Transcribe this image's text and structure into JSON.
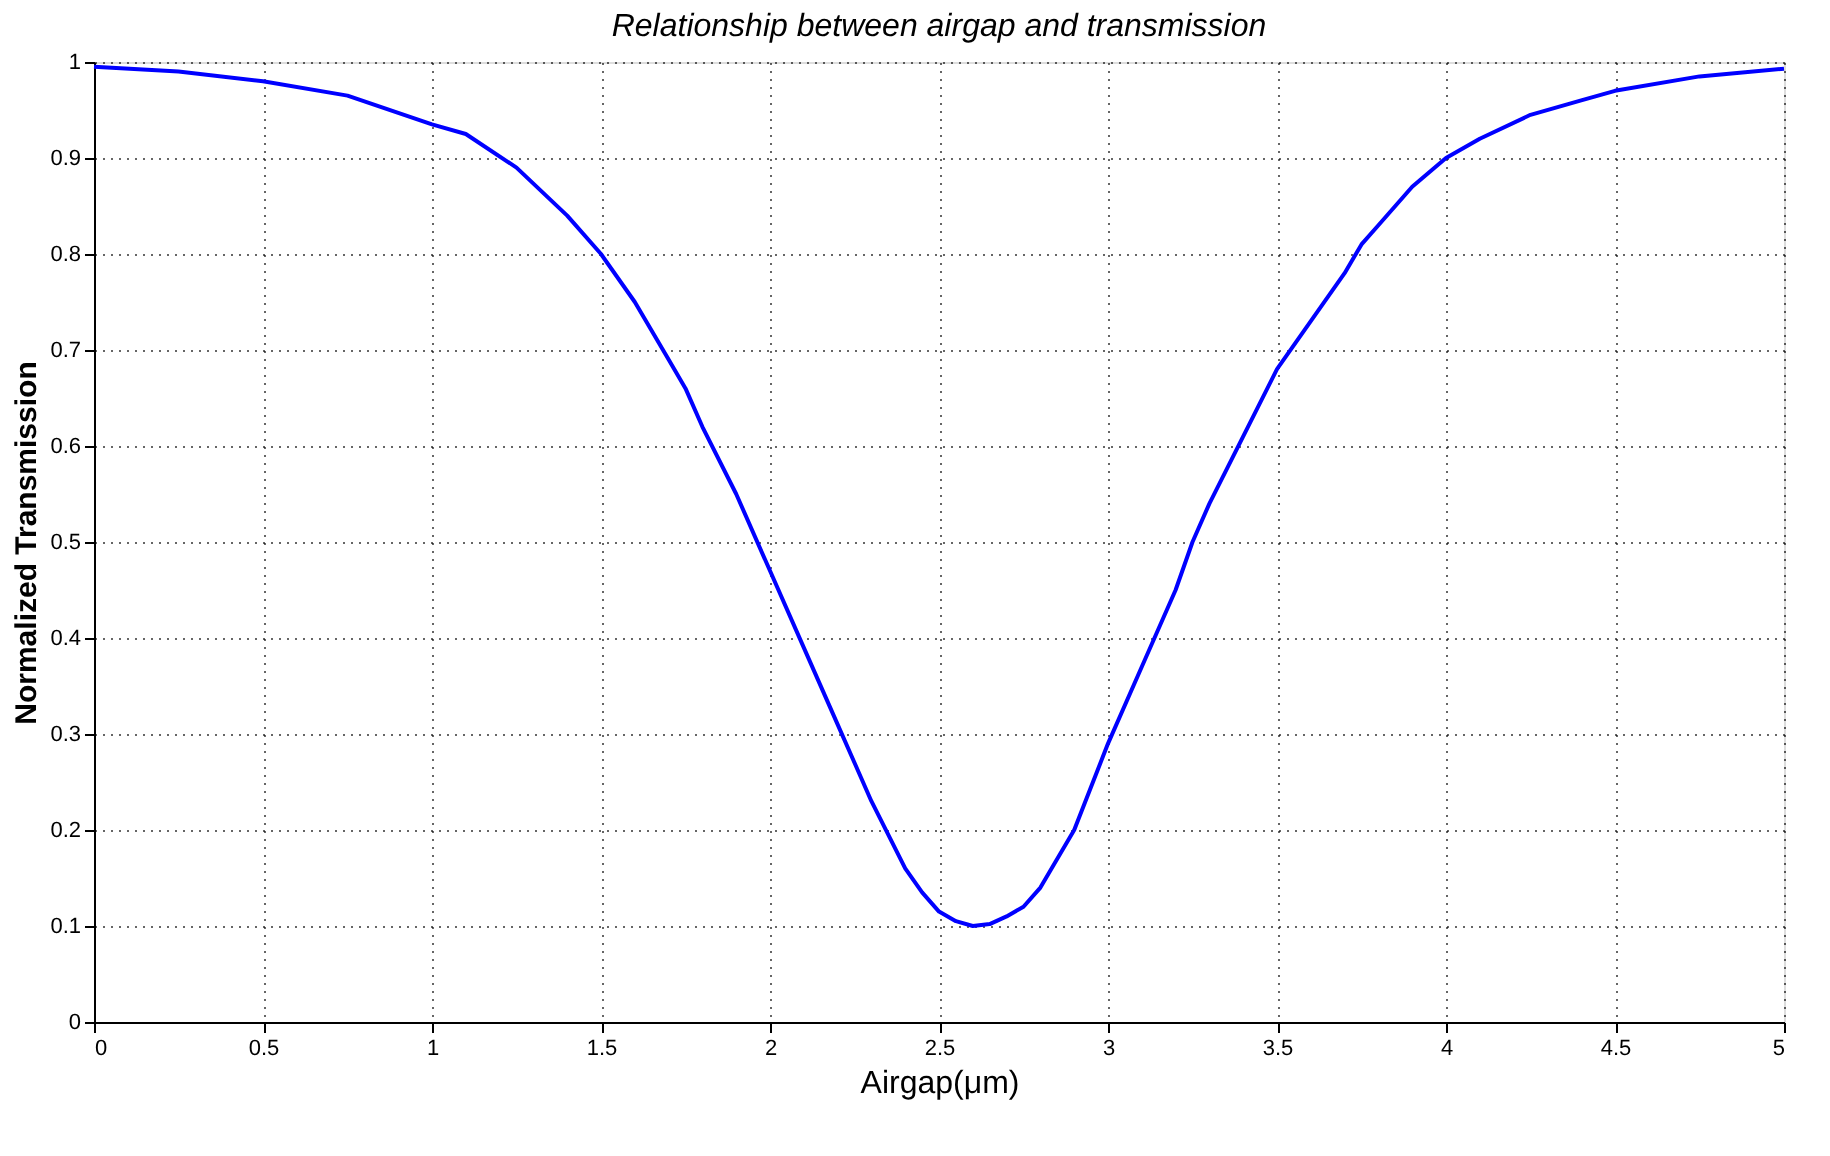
{
  "chart_data": {
    "type": "line",
    "title": "Relationship between airgap and transmission",
    "xlabel": "Airgap(μm)",
    "ylabel": "Normalized Transmission",
    "series": [
      {
        "color": "#0000ff",
        "x": [
          0,
          0.25,
          0.5,
          0.75,
          1.0,
          1.1,
          1.25,
          1.4,
          1.5,
          1.6,
          1.7,
          1.75,
          1.8,
          1.9,
          2.0,
          2.1,
          2.2,
          2.25,
          2.3,
          2.4,
          2.45,
          2.5,
          2.55,
          2.6,
          2.65,
          2.7,
          2.75,
          2.8,
          2.9,
          3.0,
          3.1,
          3.2,
          3.25,
          3.3,
          3.4,
          3.5,
          3.6,
          3.7,
          3.75,
          3.8,
          3.9,
          4.0,
          4.1,
          4.25,
          4.4,
          4.5,
          4.75,
          5.0
        ],
        "values": [
          0.995,
          0.99,
          0.98,
          0.965,
          0.935,
          0.925,
          0.89,
          0.84,
          0.8,
          0.75,
          0.69,
          0.66,
          0.62,
          0.55,
          0.47,
          0.39,
          0.31,
          0.27,
          0.23,
          0.16,
          0.135,
          0.115,
          0.105,
          0.1,
          0.102,
          0.11,
          0.12,
          0.14,
          0.2,
          0.29,
          0.37,
          0.45,
          0.5,
          0.54,
          0.61,
          0.68,
          0.73,
          0.78,
          0.81,
          0.83,
          0.87,
          0.9,
          0.92,
          0.945,
          0.96,
          0.97,
          0.985,
          0.993
        ]
      }
    ],
    "xlim": [
      0,
      5
    ],
    "xticks": [
      0,
      0.5,
      1,
      1.5,
      2,
      2.5,
      3,
      3.5,
      4,
      4.5,
      5
    ],
    "ylim": [
      0,
      1
    ],
    "yticks": [
      0,
      0.1,
      0.2,
      0.3,
      0.4,
      0.5,
      0.6,
      0.7,
      0.8,
      0.9,
      1
    ],
    "grid": true,
    "marker": "none",
    "line_style": "solid"
  }
}
